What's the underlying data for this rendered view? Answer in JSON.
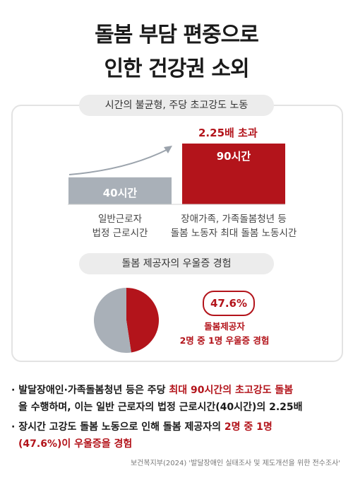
{
  "title": {
    "line1": "돌봄 부담 편중으로",
    "line2": "인한 건강권 소외"
  },
  "section1": {
    "heading": "시간의 불균형, 주당 초고강도 노동"
  },
  "section2": {
    "heading": "돌봄 제공자의 우울증 경험"
  },
  "colors": {
    "accent": "#b3141b",
    "gray": "#a9b0b8",
    "pill": "#ececec"
  },
  "chart_data": [
    {
      "type": "bar",
      "categories": [
        "일반근로자\n법정 근로시간",
        "장애가족, 가족돌봄청년 등\n돌봄 노동자 최대 돌봄 노동시간"
      ],
      "values": [
        40,
        90
      ],
      "value_labels": [
        "40시간",
        "90시간"
      ],
      "caption_lines": [
        [
          "일반근로자",
          "법정 근로시간"
        ],
        [
          "장애가족, 가족돌봄청년 등",
          "돌봄 노동자 최대 돌봄 노동시간"
        ]
      ],
      "annotation": "2.25배 초과",
      "colors": [
        "#a9b0b8",
        "#b3141b"
      ]
    },
    {
      "type": "pie",
      "values": [
        47.6,
        52.4
      ],
      "colors": [
        "#b3141b",
        "#a9b0b8"
      ],
      "highlight_label": "47.6%",
      "caption": [
        "돌봄제공자",
        "2명 중 1명 우울증 경험"
      ]
    }
  ],
  "notes": [
    {
      "bullet": "·",
      "plain1": "발달장애인·가족돌봄청년 등은 주당 ",
      "red1": "최대 90시간의 초고강도 돌봄",
      "plain2": "을 수행하며, 이는 일반 근로자의 법정 근로시간(40시간)의 2.25배"
    },
    {
      "bullet": "·",
      "plain1": "장시간 고강도 돌봄 노동으로 인해 돌봄 제공자의 ",
      "red1": "2명 중 1명",
      "red2": "(47.6%)이 우울증을 경험"
    }
  ],
  "source": "보건복지부(2024) '발달장애인 실태조사 및 제도개선을 위한 전수조사'"
}
